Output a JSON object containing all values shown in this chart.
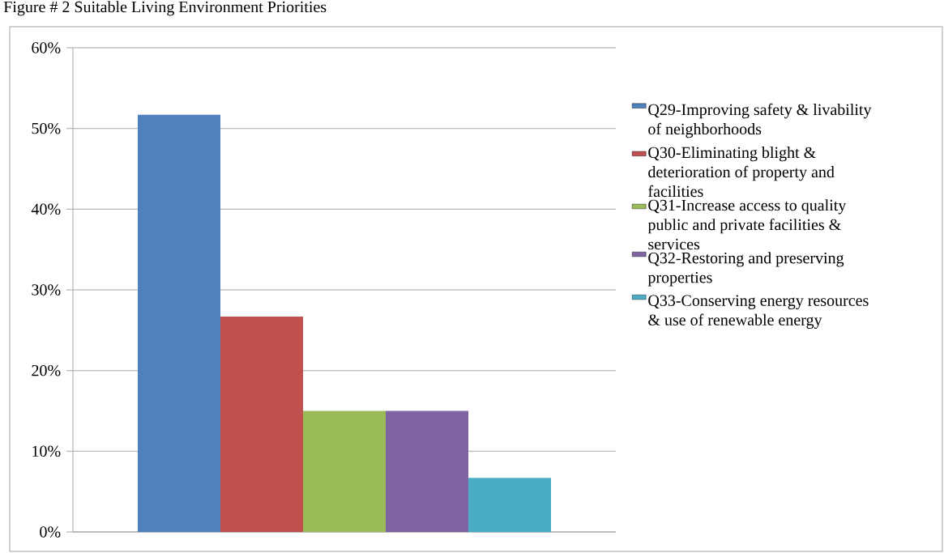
{
  "chart_data": {
    "type": "bar",
    "title": "Figure # 2 Suitable Living Environment Priorities",
    "categories": [
      null
    ],
    "series": [
      {
        "name": "Q29-Improving safety & livability of neighborhoods",
        "color": "#4f81bd",
        "values": [
          51.7
        ]
      },
      {
        "name": "Q30-Eliminating blight & deterioration of property and facilities",
        "color": "#c0504d",
        "values": [
          26.7
        ]
      },
      {
        "name": "Q31-Increase access to quality public and private facilities & services",
        "color": "#9bbb59",
        "values": [
          15.0
        ]
      },
      {
        "name": "Q32-Restoring and preserving properties",
        "color": "#8064a2",
        "values": [
          15.0
        ]
      },
      {
        "name": "Q33-Conserving energy resources & use of renewable energy",
        "color": "#4bacc6",
        "values": [
          6.7
        ]
      }
    ],
    "ylim": [
      0,
      60
    ],
    "yticks": [
      {
        "value": 0,
        "label": "0%"
      },
      {
        "value": 10,
        "label": "10%"
      },
      {
        "value": 20,
        "label": "20%"
      },
      {
        "value": 30,
        "label": "30%"
      },
      {
        "value": 40,
        "label": "40%"
      },
      {
        "value": 50,
        "label": "50%"
      },
      {
        "value": 60,
        "label": "60%"
      }
    ],
    "grid": "y",
    "legend": "right"
  }
}
